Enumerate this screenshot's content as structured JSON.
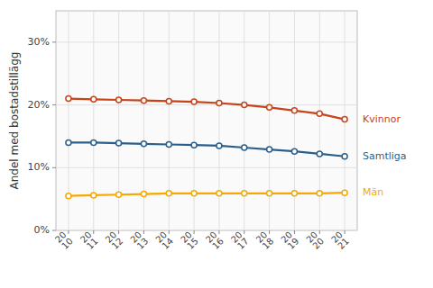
{
  "chart_data": {
    "type": "line",
    "y_label": "Andel med bostadstillägg",
    "categories": [
      "20\n10",
      "20\n11",
      "20\n12",
      "20\n13",
      "20\n14",
      "20\n15",
      "20\n16",
      "20\n17",
      "20\n18",
      "20\n19",
      "20\n20",
      "20\n21"
    ],
    "series": [
      {
        "name": "Kvinnor",
        "color": "#C8421A",
        "marker": "circle",
        "values": [
          0.21,
          0.209,
          0.208,
          0.207,
          0.206,
          0.205,
          0.203,
          0.2,
          0.196,
          0.191,
          0.186,
          0.177
        ]
      },
      {
        "name": "Samtliga",
        "color": "#2A5F8C",
        "marker": "circle",
        "values": [
          0.14,
          0.14,
          0.139,
          0.138,
          0.137,
          0.136,
          0.135,
          0.132,
          0.129,
          0.126,
          0.122,
          0.118
        ]
      },
      {
        "name": "Män",
        "color": "#F5A800",
        "marker": "circle",
        "values": [
          0.055,
          0.056,
          0.057,
          0.058,
          0.059,
          0.059,
          0.059,
          0.059,
          0.059,
          0.059,
          0.059,
          0.06
        ]
      }
    ],
    "ylim": [
      0,
      0.35
    ],
    "yticks": [
      {
        "value": 0.0,
        "label": "0%"
      },
      {
        "value": 0.1,
        "label": "10%"
      },
      {
        "value": 0.2,
        "label": "20%"
      },
      {
        "value": 0.3,
        "label": "30%"
      }
    ],
    "grid": true
  }
}
